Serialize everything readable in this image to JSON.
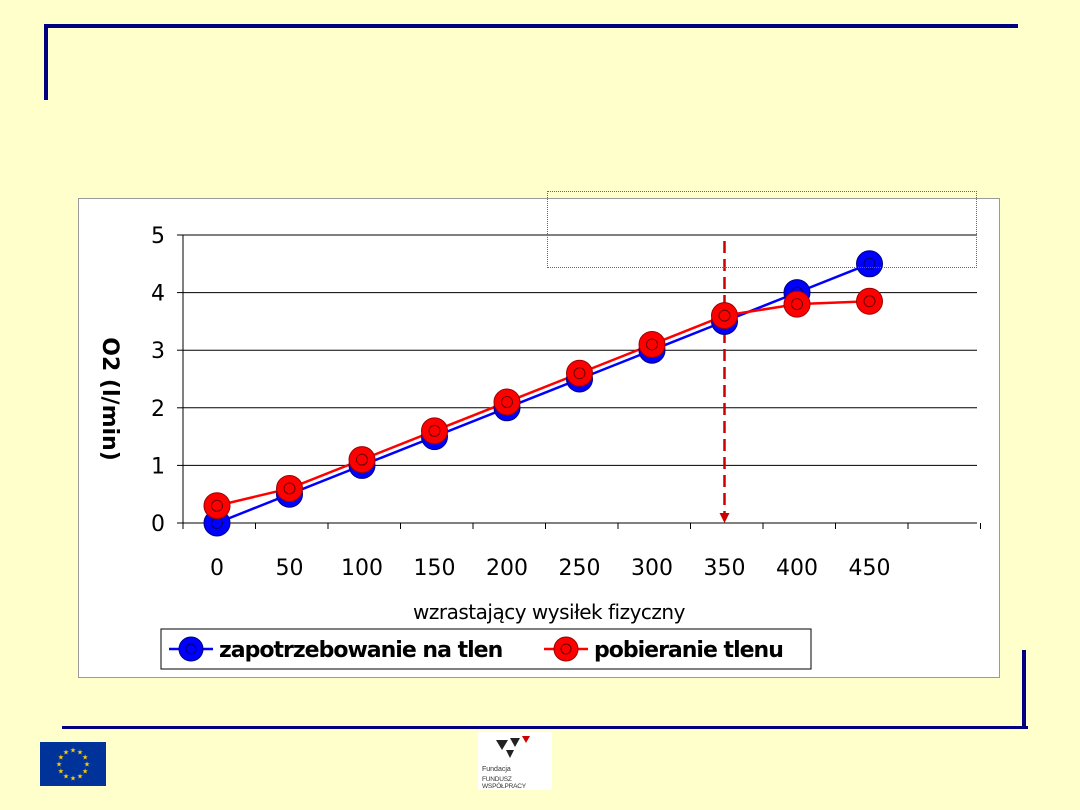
{
  "slide": {
    "frame_color": "#000080",
    "background": "#ffffcc"
  },
  "chart_data": {
    "type": "line",
    "title": "",
    "xlabel": "wzrastający wysiłek fizyczny",
    "ylabel": "O2 (l/min)",
    "categories": [
      "0",
      "50",
      "100",
      "150",
      "200",
      "250",
      "300",
      "350",
      "400",
      "450"
    ],
    "x": [
      0,
      50,
      100,
      150,
      200,
      250,
      300,
      350,
      400,
      450
    ],
    "ylim": [
      0,
      5
    ],
    "yticks": [
      "0",
      "1",
      "2",
      "3",
      "4",
      "5"
    ],
    "grid": true,
    "legend_position": "bottom",
    "series": [
      {
        "name": "zapotrzebowanie na tlen",
        "color": "#0000ff",
        "values": [
          0,
          0.5,
          1.0,
          1.5,
          2.0,
          2.5,
          3.0,
          3.5,
          4.0,
          4.5
        ]
      },
      {
        "name": "pobieranie tlenu",
        "color": "#ff0000",
        "values": [
          0.3,
          0.6,
          1.1,
          1.6,
          2.1,
          2.6,
          3.1,
          3.6,
          3.8,
          3.85
        ]
      }
    ],
    "annotation": {
      "type": "dashed-arrow",
      "x": 350,
      "color": "#cc0000"
    }
  },
  "footer": {
    "eu_logo": "eu-flag-logo",
    "fund_logo_line1": "Fundacja",
    "fund_logo_line2": "FUNDUSZ WSPÓŁPRACY"
  }
}
